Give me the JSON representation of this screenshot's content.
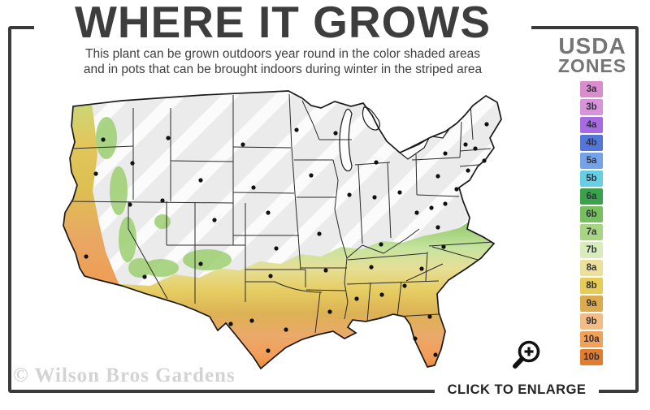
{
  "header": {
    "title": "WHERE IT GROWS",
    "subtitle_line1": "This plant can be grown outdoors year round in the color shaded areas",
    "subtitle_line2": "and in pots that can be brought indoors during winter in the striped area"
  },
  "legend": {
    "title_line1": "USDA",
    "title_line2": "ZONES",
    "zones": [
      {
        "label": "3a",
        "color": "#db8ccd"
      },
      {
        "label": "3b",
        "color": "#d894da"
      },
      {
        "label": "4a",
        "color": "#a76ae0"
      },
      {
        "label": "4b",
        "color": "#5377d9"
      },
      {
        "label": "5a",
        "color": "#74a3ea"
      },
      {
        "label": "5b",
        "color": "#66cfe3"
      },
      {
        "label": "6a",
        "color": "#3ba24c"
      },
      {
        "label": "6b",
        "color": "#77c060"
      },
      {
        "label": "7a",
        "color": "#a8d581"
      },
      {
        "label": "7b",
        "color": "#d9edbc"
      },
      {
        "label": "8a",
        "color": "#ece09c"
      },
      {
        "label": "8b",
        "color": "#e7cd55"
      },
      {
        "label": "9a",
        "color": "#dbab4e"
      },
      {
        "label": "9b",
        "color": "#f4bc85"
      },
      {
        "label": "10a",
        "color": "#f2a159"
      },
      {
        "label": "10b",
        "color": "#e17d2d"
      }
    ]
  },
  "map": {
    "striped_region_color": "#ebebeb",
    "outline_color": "#1a1a1a",
    "city_dot_color": "#111111"
  },
  "footer": {
    "watermark": "© Wilson Bros Gardens",
    "enlarge_label": "CLICK TO ENLARGE",
    "magnifier_icon": "zoom-in-magnifier"
  },
  "colors": {
    "frame": "#3b3b3b",
    "title_text": "#3d3d3d",
    "legend_title_text": "#757575",
    "watermark_text": "#d3d3d3"
  }
}
